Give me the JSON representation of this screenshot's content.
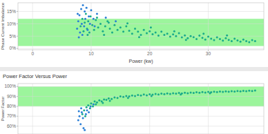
{
  "chart_data": [
    {
      "type": "scatter",
      "x_label": "Power (kw)",
      "y_label": "Phase Current Imbalance",
      "xlim": [
        -2.5,
        39.5
      ],
      "xticks": [
        0,
        10,
        20,
        30
      ],
      "ylim": [
        -0.5,
        18.5
      ],
      "yticks": [
        {
          "value": 0,
          "label": "0%"
        },
        {
          "value": 5,
          "label": "5%"
        },
        {
          "value": 10,
          "label": "10%"
        },
        {
          "value": 15,
          "label": "15%"
        }
      ],
      "band": [
        1,
        12
      ],
      "grid": true,
      "tick_labels": true,
      "series": [
        {
          "color": "#1aab8a",
          "marker": "circle",
          "x": [
            8.2,
            8.5,
            8.7,
            8.9,
            9.1,
            9.3,
            9.5,
            9.7,
            9.9,
            10.2,
            10.5,
            10.8,
            11.2,
            11.6,
            12,
            12.4,
            12.8,
            13.2,
            13.6,
            14,
            14.5,
            15,
            15.5,
            16,
            16.5,
            17,
            17.5,
            18,
            18.5,
            19,
            19.5,
            20,
            20.5,
            21,
            21.5,
            22,
            22.5,
            23,
            23.5,
            24,
            24.5,
            25,
            25.5,
            26,
            26.5,
            27,
            27.5,
            28,
            28.5,
            29,
            29.5,
            30,
            30.5,
            31,
            31.5,
            32,
            32.5,
            33,
            33.5,
            34,
            34.5,
            35,
            35.5,
            36,
            36.5,
            37,
            37.5,
            38,
            11,
            13,
            16.2,
            20.2,
            24.2,
            29.2,
            33.2,
            9.4,
            12.2,
            18.2,
            26.2
          ],
          "values": [
            9,
            12,
            7,
            10.5,
            14,
            8,
            11,
            6.5,
            13,
            9.5,
            7.5,
            11.5,
            8.5,
            10,
            7,
            9,
            11,
            8,
            6.5,
            9.5,
            7.5,
            8.5,
            6.8,
            9,
            7.2,
            6,
            8,
            6.8,
            5.5,
            7.5,
            6.2,
            7,
            5.8,
            6.5,
            5.2,
            6.8,
            5.5,
            6,
            4.8,
            5.7,
            5,
            6.2,
            4.5,
            5.3,
            4.2,
            5,
            4.6,
            3.8,
            5.2,
            4.3,
            3.6,
            4.8,
            4,
            3.4,
            4.5,
            3.8,
            3.2,
            4.2,
            3.5,
            3,
            4,
            3.3,
            2.8,
            3.6,
            3,
            2.6,
            3.4,
            3,
            12.5,
            10.5,
            10.2,
            8.5,
            7,
            6,
            5.3,
            5.5,
            5.5,
            4.6,
            3.5
          ]
        },
        {
          "color": "#2b7fd6",
          "marker": "circle",
          "x": [
            7.6,
            7.8,
            8,
            8.1,
            8.3,
            8.4,
            8.6,
            8.8,
            8.9,
            9,
            9.2,
            9.4,
            9.6,
            7.9,
            8.5,
            10,
            10.4,
            11,
            12.5,
            14.2,
            9.8,
            10.6,
            7.7
          ],
          "values": [
            8,
            11,
            13.5,
            6.5,
            16,
            10,
            17.5,
            9,
            15,
            12,
            16.5,
            7.5,
            13,
            4.5,
            5.5,
            15.5,
            12,
            14,
            12.5,
            11,
            10,
            9,
            14
          ]
        }
      ]
    },
    {
      "type": "scatter",
      "title": "Power Factor Versus Power",
      "y_label": "Power Factor",
      "xlim": [
        -2.5,
        39.5
      ],
      "xticks": [
        0,
        10,
        20,
        30
      ],
      "ylim": [
        52,
        103
      ],
      "yticks": [
        {
          "value": 60,
          "label": "60%"
        },
        {
          "value": 70,
          "label": "70%"
        },
        {
          "value": 80,
          "label": "80%"
        },
        {
          "value": 90,
          "label": "90%"
        },
        {
          "value": 100,
          "label": "100%"
        }
      ],
      "band": [
        80,
        100
      ],
      "grid": true,
      "tick_labels": "y",
      "series": [
        {
          "color": "#1aab8a",
          "marker": "circle",
          "x": [
            8.5,
            8.8,
            9,
            9.2,
            9.5,
            9.8,
            10,
            10.3,
            10.6,
            11,
            11.4,
            11.8,
            12.2,
            12.6,
            13,
            13.5,
            14,
            14.5,
            15,
            15.5,
            16,
            16.5,
            17,
            17.5,
            18,
            18.5,
            19,
            19.5,
            20,
            20.5,
            21,
            21.5,
            22,
            22.5,
            23,
            23.5,
            24,
            24.5,
            25,
            25.5,
            26,
            26.5,
            27,
            27.5,
            28,
            28.5,
            29,
            29.5,
            30,
            30.5,
            31,
            31.5,
            32,
            32.5,
            33,
            33.5,
            34,
            34.5,
            35,
            35.5,
            36,
            36.5,
            37,
            37.5,
            38,
            10.8,
            13.2,
            16.3,
            20.3,
            25.3,
            30.3,
            12
          ],
          "values": [
            72,
            76,
            70,
            79,
            81,
            78,
            83,
            80,
            85,
            84,
            86,
            85,
            87,
            86.5,
            88,
            87.5,
            89,
            88.5,
            90,
            89.5,
            90.5,
            90,
            91,
            90.5,
            91.5,
            91,
            92,
            91.2,
            92.2,
            91.8,
            92.5,
            92,
            92.8,
            92.3,
            93,
            92.6,
            93.2,
            92.8,
            93.5,
            93,
            93.7,
            93.2,
            94,
            93.5,
            94.2,
            93.8,
            94.4,
            94,
            94.6,
            94.2,
            94.8,
            94.4,
            95,
            94.6,
            95.2,
            94.8,
            95.4,
            95,
            95.5,
            95.2,
            95.7,
            95.3,
            95.8,
            95.5,
            96,
            82,
            85.5,
            88.5,
            90.5,
            92,
            93.2,
            83.5
          ]
        },
        {
          "color": "#2b7fd6",
          "marker": "circle",
          "x": [
            7.8,
            8,
            8.2,
            8.4,
            8.6,
            8.7,
            8.9,
            9.1,
            9.3,
            9.6,
            8.3,
            9.9,
            10.4,
            7.9
          ],
          "values": [
            66,
            70,
            62,
            74,
            68,
            58,
            56,
            72,
            76,
            74,
            78,
            80,
            82,
            75
          ]
        }
      ]
    }
  ]
}
